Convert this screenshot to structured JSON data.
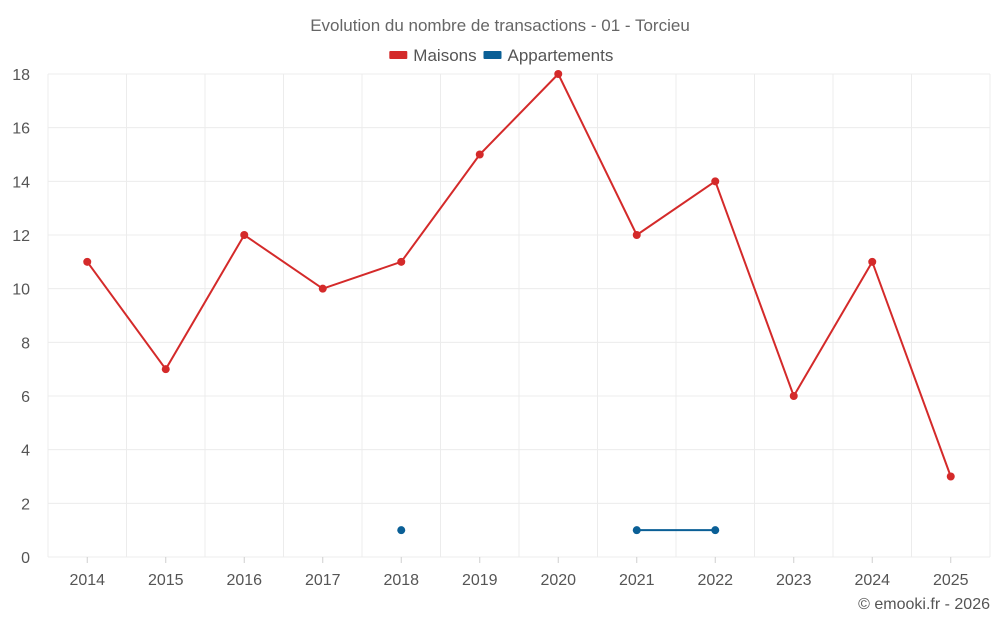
{
  "chart_data": {
    "type": "line",
    "title": "Evolution du nombre de transactions - 01 - Torcieu",
    "categories": [
      "2014",
      "2015",
      "2016",
      "2017",
      "2018",
      "2019",
      "2020",
      "2021",
      "2022",
      "2023",
      "2024",
      "2025"
    ],
    "series": [
      {
        "name": "Maisons",
        "color": "#d42a2a",
        "values": [
          11,
          7,
          12,
          10,
          11,
          15,
          18,
          12,
          14,
          6,
          11,
          3
        ]
      },
      {
        "name": "Appartements",
        "color": "#0a5f96",
        "values": [
          null,
          null,
          null,
          null,
          1,
          null,
          null,
          1,
          1,
          null,
          null,
          null
        ]
      }
    ],
    "ylim": [
      0,
      18
    ],
    "yticks": [
      0,
      2,
      4,
      6,
      8,
      10,
      12,
      14,
      16,
      18
    ],
    "grid": true,
    "legend_position": "top-center",
    "xlabel": "",
    "ylabel": ""
  },
  "credit": "© emooki.fr - 2026"
}
